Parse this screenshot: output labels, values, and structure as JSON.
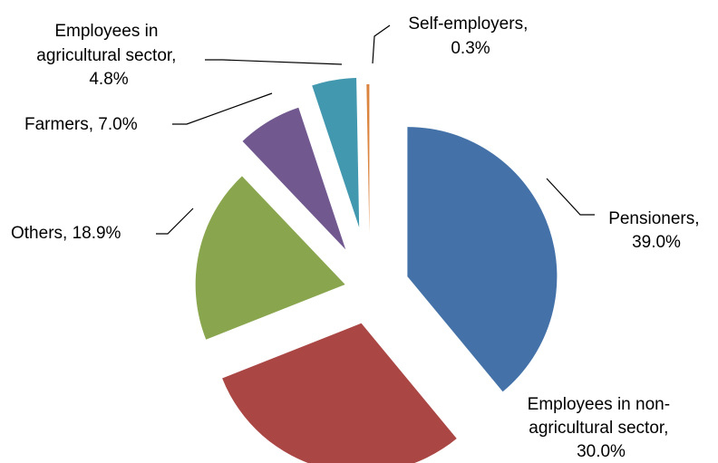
{
  "chart_data": {
    "type": "pie",
    "title": "",
    "start_angle_deg": 90,
    "direction": "clockwise",
    "slices": [
      {
        "name": "Pensioners",
        "value": 39.0,
        "label_lines": [
          "Pensioners,",
          "39.0%"
        ],
        "color": "#4472A8"
      },
      {
        "name": "Employees in non-agricultural sector",
        "value": 30.0,
        "label_lines": [
          "Employees in non-",
          "agricultural sector,",
          "30.0%"
        ],
        "color": "#AA4644"
      },
      {
        "name": "Others",
        "value": 18.9,
        "label_lines": [
          "Others, 18.9%"
        ],
        "color": "#89A64E"
      },
      {
        "name": "Farmers",
        "value": 7.0,
        "label_lines": [
          "Farmers, 7.0%"
        ],
        "color": "#71588F"
      },
      {
        "name": "Employees in agricultural sector",
        "value": 4.8,
        "label_lines": [
          "Employees in",
          "agricultural sector,",
          "4.8%"
        ],
        "color": "#4298AE"
      },
      {
        "name": "Self-employers",
        "value": 0.3,
        "label_lines": [
          "Self-employers,",
          "0.3%"
        ],
        "color": "#DB843D"
      }
    ]
  }
}
